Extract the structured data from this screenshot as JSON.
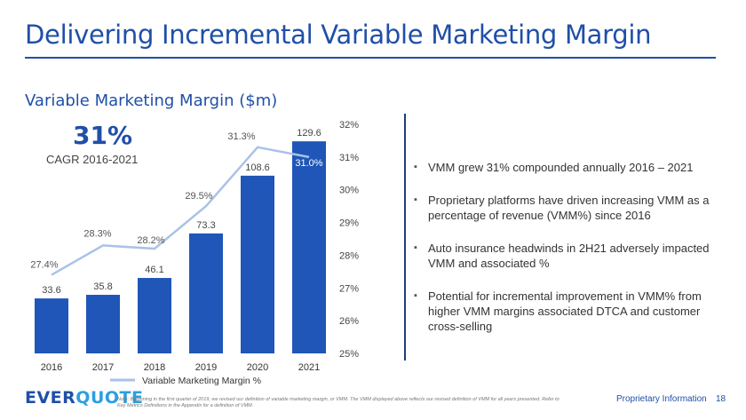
{
  "slide": {
    "title": "Delivering Incremental Variable Marketing Margin",
    "subtitle": "Variable Marketing Margin ($m)",
    "cagr_value": "31%",
    "cagr_label": "CAGR 2016-2021",
    "bullets": [
      "VMM grew 31% compounded annually 2016 – 2021",
      "Proprietary platforms have driven increasing VMM as a percentage of revenue (VMM%) since 2016",
      "Auto insurance headwinds in 2H21 adversely impacted VMM and associated %",
      "Potential for incremental improvement in VMM% from higher VMM margins associated  DTCA and customer cross-selling"
    ],
    "note": "Note: Beginning in the first quarter of 2019, we revised our definition of variable marketing margin, or VMM. The VMM displayed above reflects our revised definition of VMM for all years presented. Refer to Key Metrics Definitions in the Appendix for a definition of VMM.",
    "footer_label": "Proprietary Information",
    "page_number": "18",
    "logo": {
      "part1": "EVER",
      "part2": "QUOTE"
    }
  },
  "colors": {
    "bar": "#1f56b8",
    "line": "#a9c2e8",
    "accent": "#1f4fa8",
    "logo_light": "#2b9fe0"
  },
  "chart_data": {
    "type": "bar",
    "categories": [
      "2016",
      "2017",
      "2018",
      "2019",
      "2020",
      "2021"
    ],
    "series": [
      {
        "name": "Variable Marketing Margin ($m)",
        "type": "bar",
        "axis": "left",
        "values": [
          33.6,
          35.8,
          46.1,
          73.3,
          108.6,
          129.6
        ],
        "labels": [
          "33.6",
          "35.8",
          "46.1",
          "73.3",
          "108.6",
          "129.6"
        ]
      },
      {
        "name": "Variable Marketing Margin %",
        "type": "line",
        "axis": "right",
        "values": [
          27.4,
          28.3,
          28.2,
          29.5,
          31.3,
          31.0
        ],
        "labels": [
          "27.4%",
          "28.3%",
          "28.2%",
          "29.5%",
          "31.3%",
          "31.0%"
        ]
      }
    ],
    "ylim": [
      0,
      140
    ],
    "y2lim": [
      25,
      32
    ],
    "y2ticks": [
      "25%",
      "26%",
      "27%",
      "28%",
      "29%",
      "30%",
      "31%",
      "32%"
    ],
    "legend": [
      "Variable Marketing Margin %"
    ],
    "title": "Variable Marketing Margin ($m)",
    "xlabel": "",
    "ylabel": ""
  }
}
